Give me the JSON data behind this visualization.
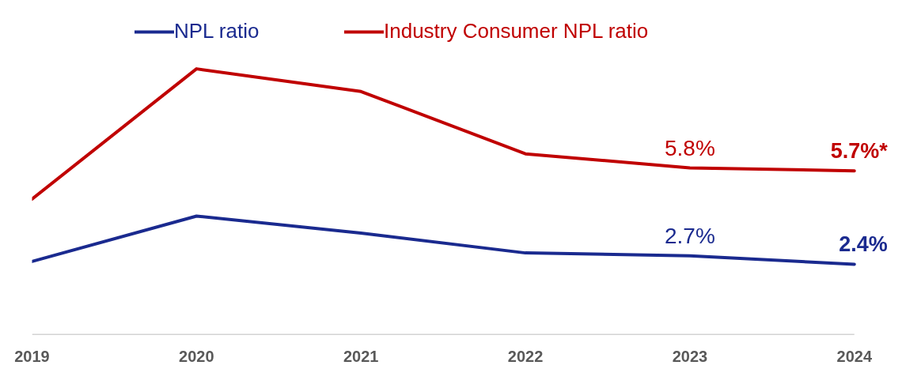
{
  "chart_data": {
    "type": "line",
    "categories": [
      "2019",
      "2020",
      "2021",
      "2022",
      "2023",
      "2024"
    ],
    "series": [
      {
        "name": "NPL ratio",
        "color": "#1a2a8f",
        "values": [
          2.5,
          4.1,
          3.5,
          2.8,
          2.7,
          2.4
        ],
        "value_labels": [
          null,
          null,
          null,
          null,
          "2.7%",
          "2.4%"
        ]
      },
      {
        "name": "Industry Consumer NPL ratio",
        "color": "#c00000",
        "values": [
          4.7,
          9.3,
          8.5,
          6.3,
          5.8,
          5.7
        ],
        "value_labels": [
          null,
          null,
          null,
          null,
          "5.8%",
          "5.7%*"
        ]
      }
    ],
    "legend": "top",
    "grid": false,
    "line_style": "solid",
    "marker": "none"
  }
}
